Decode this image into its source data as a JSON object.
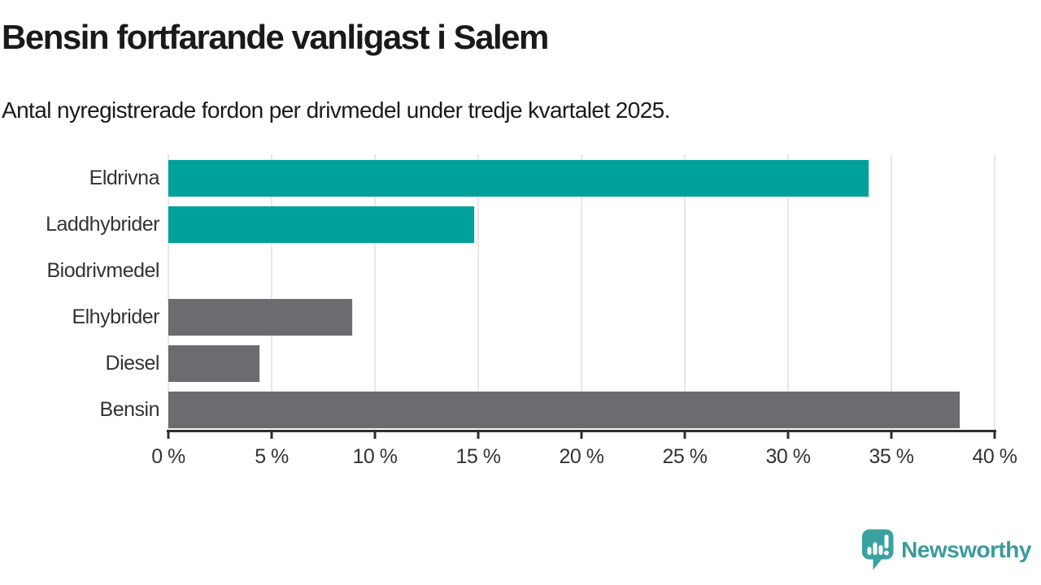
{
  "chart_data": {
    "type": "bar",
    "orientation": "horizontal",
    "title": "Bensin fortfarande vanligast i Salem",
    "subtitle": "Antal nyregistrerade fordon per drivmedel under tredje kvartalet 2025.",
    "categories": [
      "Eldrivna",
      "Laddhybrider",
      "Biodrivmedel",
      "Elhybrider",
      "Diesel",
      "Bensin"
    ],
    "values": [
      33.9,
      14.8,
      0,
      8.9,
      4.4,
      38.3
    ],
    "unit": "%",
    "bar_colors": [
      "#00a19b",
      "#00a19b",
      "#6b6b70",
      "#6b6b70",
      "#6b6b70",
      "#6b6b70"
    ],
    "xlim": [
      0,
      40
    ],
    "x_ticks": [
      0,
      5,
      10,
      15,
      20,
      25,
      30,
      35,
      40
    ],
    "x_tick_labels": [
      "0 %",
      "5 %",
      "10 %",
      "15 %",
      "20 %",
      "25 %",
      "30 %",
      "35 %",
      "40 %"
    ],
    "grid": "vertical",
    "legend": "none"
  },
  "colors": {
    "accent_teal": "#00a19b",
    "bar_gray": "#6b6b70",
    "gridline": "#e7e7e7",
    "axis": "#2e2e2e",
    "title_text": "#1a1a1a",
    "label_text": "#333333",
    "logo_teal": "#3ba0a1",
    "logo_text_teal": "#3b9a9b",
    "background": "#ffffff"
  },
  "branding": {
    "logo_text": "Newsworthy",
    "logo_icon": "speech-bubble-bar-chart-exclamation-icon"
  }
}
